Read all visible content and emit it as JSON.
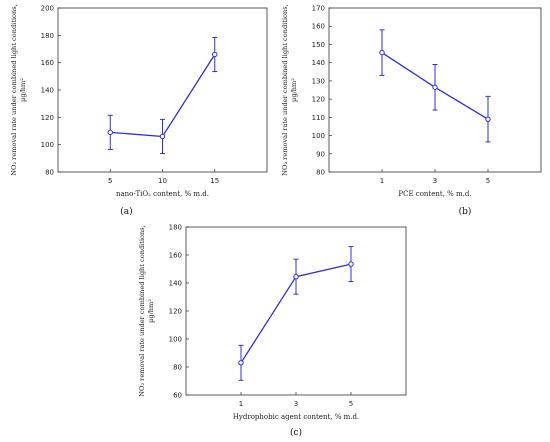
{
  "chart_data": [
    {
      "type": "line",
      "panel_label": "(a)",
      "xlabel": "nano-TiO₂ content, % m.d.",
      "ylabel_line1": "NO₂ removal rate under combined light conditions,",
      "ylabel_line2": "µg/hm²",
      "categories": [
        "5",
        "10",
        "15"
      ],
      "values": [
        109,
        106,
        166
      ],
      "errors": [
        12.5,
        12.5,
        12.5
      ],
      "yticks": [
        80,
        100,
        120,
        140,
        160,
        180,
        200
      ],
      "ylim": [
        80,
        200
      ],
      "grid": false
    },
    {
      "type": "line",
      "panel_label": "(b)",
      "xlabel": "PCE content, % m.d.",
      "ylabel_line1": "NO₂ removal rate under combined light conditions,",
      "ylabel_line2": "µg/hm²",
      "categories": [
        "1",
        "3",
        "5"
      ],
      "values": [
        145.5,
        126.5,
        109
      ],
      "errors": [
        12.5,
        12.5,
        12.5
      ],
      "yticks": [
        80,
        90,
        100,
        110,
        120,
        130,
        140,
        150,
        160,
        170
      ],
      "ylim": [
        80,
        170
      ],
      "grid": false
    },
    {
      "type": "line",
      "panel_label": "(c)",
      "xlabel": "Hydrophobic agent content, % m.d.",
      "ylabel_line1": "NO₂ removal rate under combined light conditions,",
      "ylabel_line2": "µg/hm²",
      "categories": [
        "1",
        "3",
        "5"
      ],
      "values": [
        83,
        144.5,
        153.5
      ],
      "errors": [
        12.5,
        12.5,
        12.5
      ],
      "yticks": [
        60,
        80,
        100,
        120,
        140,
        160,
        180
      ],
      "ylim": [
        60,
        180
      ],
      "grid": false
    }
  ],
  "colors": {
    "series": "#2f2fd8",
    "axis": "#333333"
  }
}
